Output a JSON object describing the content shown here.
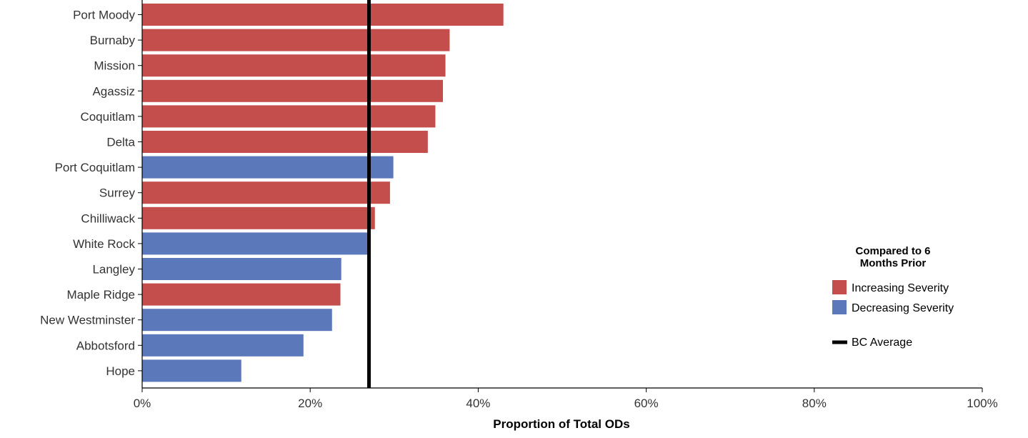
{
  "chart_data": {
    "type": "bar",
    "orientation": "horizontal",
    "title": "",
    "xlabel": "Proportion of Total ODs",
    "ylabel": "",
    "xlim": [
      0,
      100
    ],
    "x_ticks": [
      "0%",
      "20%",
      "40%",
      "60%",
      "80%",
      "100%"
    ],
    "x_tick_values": [
      0,
      20,
      40,
      60,
      80,
      100
    ],
    "grid": false,
    "categories": [
      "Port Moody",
      "Burnaby",
      "Mission",
      "Agassiz",
      "Coquitlam",
      "Delta",
      "Port Coquitlam",
      "Surrey",
      "Chilliwack",
      "White Rock",
      "Langley",
      "Maple Ridge",
      "New Westminster",
      "Abbotsford",
      "Hope"
    ],
    "values": [
      43.0,
      36.6,
      36.1,
      35.8,
      34.9,
      34.0,
      29.9,
      29.5,
      27.7,
      27.2,
      23.7,
      23.6,
      22.6,
      19.2,
      11.8
    ],
    "severity": [
      "Increasing Severity",
      "Increasing Severity",
      "Increasing Severity",
      "Increasing Severity",
      "Increasing Severity",
      "Increasing Severity",
      "Decreasing Severity",
      "Increasing Severity",
      "Increasing Severity",
      "Decreasing Severity",
      "Decreasing Severity",
      "Increasing Severity",
      "Decreasing Severity",
      "Decreasing Severity",
      "Decreasing Severity"
    ],
    "reference_line": {
      "label": "BC Average",
      "value": 27.0,
      "color": "#000000"
    },
    "legend": {
      "title": "Compared to 6 Months Prior",
      "placement": "right",
      "items": [
        {
          "label": "Increasing Severity",
          "color": "#c44e4c"
        },
        {
          "label": "Decreasing Severity",
          "color": "#5b78bb"
        }
      ]
    }
  }
}
